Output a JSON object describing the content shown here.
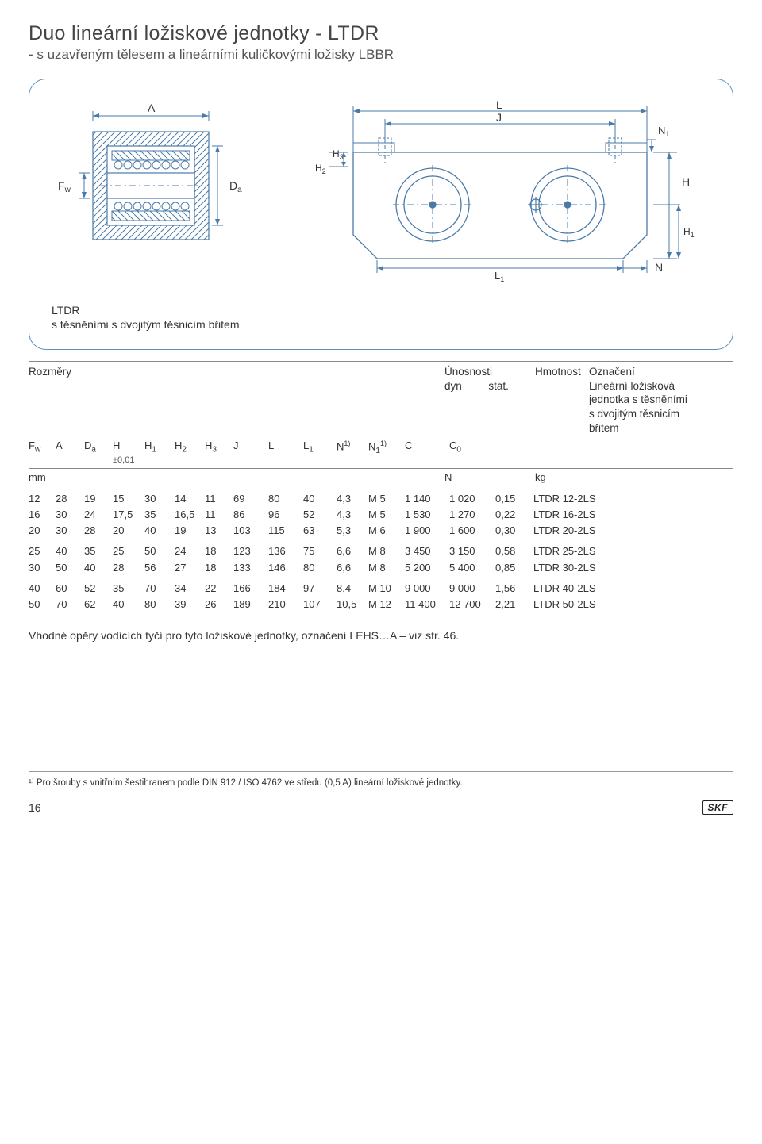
{
  "title": "Duo lineární ložiskové jednotky - LTDR",
  "subtitle": "- s uzavřeným tělesem a lineárními kuličkovými ložisky LBBR",
  "diagram": {
    "left_labels": {
      "Fw": "Fw",
      "A": "A",
      "Da": "Da"
    },
    "right_labels": {
      "L": "L",
      "J": "J",
      "N1": "N₁",
      "H3": "H₃",
      "H2": "H₂",
      "H": "H",
      "H1": "H₁",
      "L1": "L₁",
      "N": "N"
    },
    "caption_line1": "LTDR",
    "caption_line2": "s těsněními s dvojitým těsnicím břitem",
    "stroke": "#4a7aa8",
    "stroke_width": 1.1,
    "hatch_color": "#4a7aa8",
    "font_size": 13
  },
  "table": {
    "header_left": "Rozměry",
    "header_mid1": "Únosnosti",
    "header_mid2_a": "dyn",
    "header_mid2_b": "stat.",
    "header_m": "Hmotnost",
    "header_right1": "Označení",
    "header_right2": "Lineární ložisková",
    "header_right3": "jednotka s těsněními",
    "header_right4": "s dvojitým těsnicím",
    "header_right5": "břitem",
    "cols": [
      "Fw",
      "A",
      "Da",
      "H",
      "H1",
      "H2",
      "H3",
      "J",
      "L",
      "L1",
      "N 1)",
      "N1 1)",
      "C",
      "C0",
      "mass",
      "label"
    ],
    "col_labels": [
      "F",
      "A",
      "D",
      "H",
      "H",
      "H",
      "H",
      "J",
      "L",
      "L",
      "N",
      "N",
      "C",
      "C",
      "",
      ""
    ],
    "col_subs": [
      "w",
      "",
      "a",
      "",
      "1",
      "2",
      "3",
      "",
      "",
      "1",
      "1)",
      "1)",
      "",
      "0",
      "",
      ""
    ],
    "col_extra_sub": [
      "",
      "",
      "",
      "±0,01",
      "",
      "",
      "",
      "",
      "",
      "",
      "",
      "1",
      "",
      "",
      "",
      ""
    ],
    "widths": [
      34,
      36,
      36,
      40,
      38,
      38,
      36,
      44,
      44,
      42,
      40,
      46,
      56,
      58,
      48,
      132
    ],
    "unit_mm": "mm",
    "unit_dash": "—",
    "unit_N": "N",
    "unit_kg": "kg",
    "rows": [
      [
        "12",
        "28",
        "19",
        "15",
        "30",
        "14",
        "11",
        "69",
        "80",
        "40",
        "4,3",
        "M 5",
        "1 140",
        "1 020",
        "0,15",
        "LTDR 12-2LS"
      ],
      [
        "16",
        "30",
        "24",
        "17,5",
        "35",
        "16,5",
        "11",
        "86",
        "96",
        "52",
        "4,3",
        "M 5",
        "1 530",
        "1 270",
        "0,22",
        "LTDR 16-2LS"
      ],
      [
        "20",
        "30",
        "28",
        "20",
        "40",
        "19",
        "13",
        "103",
        "115",
        "63",
        "5,3",
        "M 6",
        "1 900",
        "1 600",
        "0,30",
        "LTDR 20-2LS"
      ],
      [
        "25",
        "40",
        "35",
        "25",
        "50",
        "24",
        "18",
        "123",
        "136",
        "75",
        "6,6",
        "M 8",
        "3 450",
        "3 150",
        "0,58",
        "LTDR 25-2LS"
      ],
      [
        "30",
        "50",
        "40",
        "28",
        "56",
        "27",
        "18",
        "133",
        "146",
        "80",
        "6,6",
        "M 8",
        "5 200",
        "5 400",
        "0,85",
        "LTDR 30-2LS"
      ],
      [
        "40",
        "60",
        "52",
        "35",
        "70",
        "34",
        "22",
        "166",
        "184",
        "97",
        "8,4",
        "M 10",
        "9 000",
        "9 000",
        "1,56",
        "LTDR 40-2LS"
      ],
      [
        "50",
        "70",
        "62",
        "40",
        "80",
        "39",
        "26",
        "189",
        "210",
        "107",
        "10,5",
        "M 12",
        "11 400",
        "12 700",
        "2,21",
        "LTDR 50-2LS"
      ]
    ],
    "group_break_after": [
      2,
      4
    ]
  },
  "note_text": "Vhodné opěry vodících tyčí pro tyto ložiskové jednotky, označení LEHS…A – viz str. 46.",
  "footnote_text": "¹⁾ Pro šrouby s vnitřním šestihranem podle DIN 912 / ISO 4762 ve středu (0,5 A) lineární ložiskové jednotky.",
  "page_number": "16",
  "logo_text": "SKF"
}
